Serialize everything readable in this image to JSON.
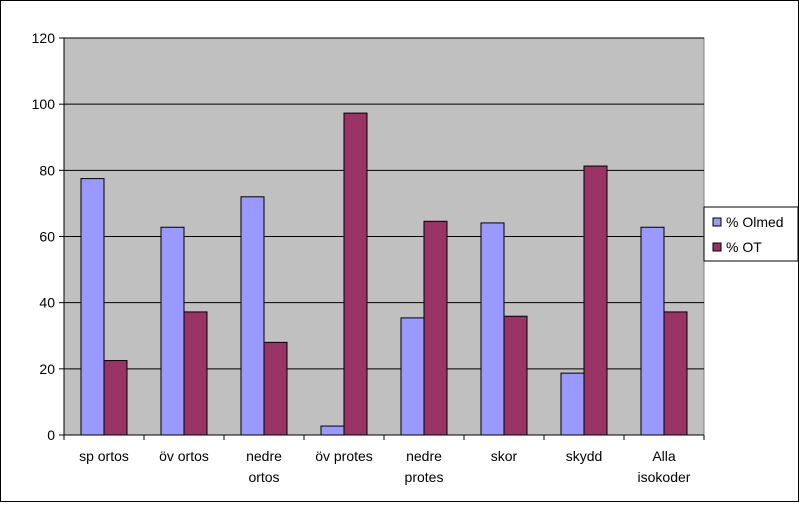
{
  "chart_data": {
    "type": "bar",
    "title": "",
    "xlabel": "",
    "ylabel": "",
    "ylim": [
      0,
      120
    ],
    "yticks": [
      0,
      20,
      40,
      60,
      80,
      100,
      120
    ],
    "grid": true,
    "plot_background": "#c0c0c0",
    "legend_position": "right",
    "categories": [
      [
        "sp ortos"
      ],
      [
        "öv ortos"
      ],
      [
        "nedre",
        "ortos"
      ],
      [
        "öv protes"
      ],
      [
        "nedre",
        "protes"
      ],
      [
        "skor"
      ],
      [
        "skydd"
      ],
      [
        "Alla",
        "isokoder"
      ]
    ],
    "series": [
      {
        "name": "% Olmed",
        "color": "#9999ff",
        "values": [
          77.5,
          62.8,
          72,
          2.7,
          35.4,
          64.1,
          18.7,
          62.8
        ]
      },
      {
        "name": "% OT",
        "color": "#993366",
        "values": [
          22.5,
          37.2,
          28,
          97.3,
          64.6,
          35.9,
          81.3,
          37.2
        ]
      }
    ]
  }
}
